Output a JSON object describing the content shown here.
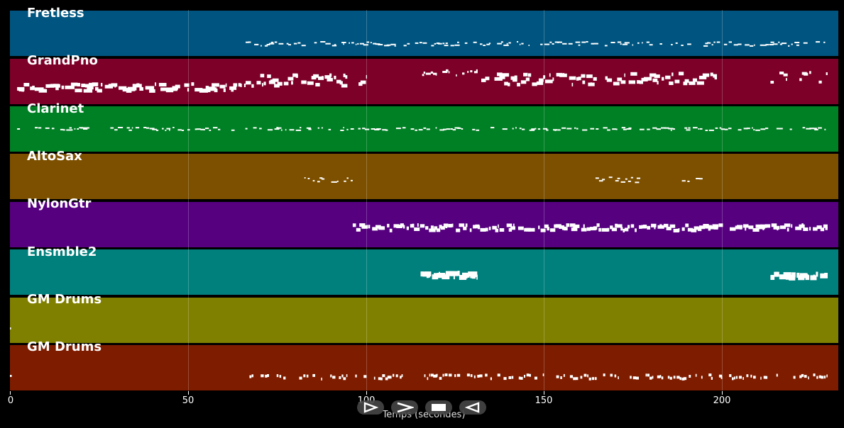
{
  "tracks": [
    {
      "name": "Fretless",
      "color": "#005580"
    },
    {
      "name": "GrandPno",
      "color": "#7c0028"
    },
    {
      "name": "Clarinet",
      "color": "#008024"
    },
    {
      "name": "AltoSax",
      "color": "#7d5000"
    },
    {
      "name": "NylonGtr",
      "color": "#560080"
    },
    {
      "name": "Ensmble2",
      "color": "#00807d"
    },
    {
      "name": "GM Drums",
      "color": "#808000"
    },
    {
      "name": "GM Drums",
      "color": "#7e1c00"
    }
  ],
  "axis": {
    "xlabel": "Temps (secondes)",
    "ticks": [
      "0",
      "50",
      "100",
      "150",
      "200"
    ],
    "range": [
      0,
      232
    ]
  },
  "controls": [
    {
      "name": "play-button",
      "icon": "play-outline-icon"
    },
    {
      "name": "forward-button",
      "icon": "chevron-right-icon"
    },
    {
      "name": "stop-button",
      "icon": "stop-icon"
    },
    {
      "name": "rewind-button",
      "icon": "play-back-icon"
    }
  ]
}
